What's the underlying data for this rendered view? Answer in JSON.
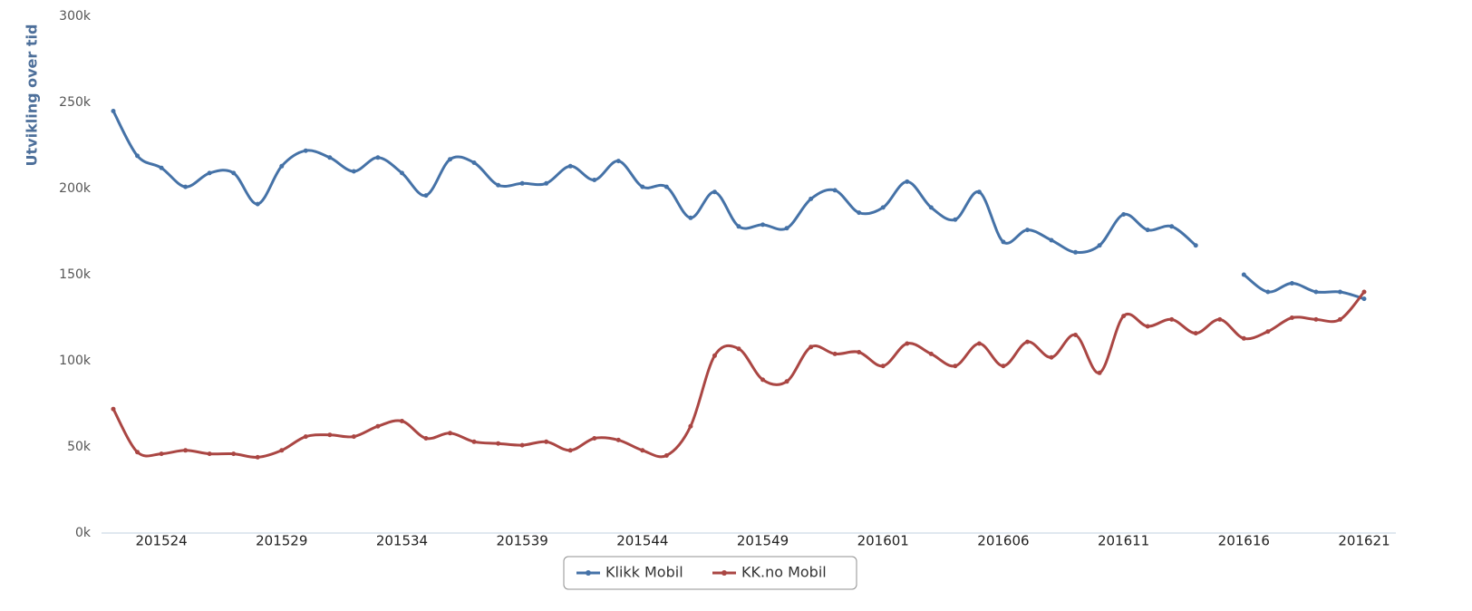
{
  "chart_data": {
    "type": "line",
    "ylabel": "Utvikling over tid",
    "categories": [
      null,
      null,
      "201524",
      null,
      null,
      null,
      null,
      "201529",
      null,
      null,
      null,
      null,
      "201534",
      null,
      null,
      null,
      null,
      "201539",
      null,
      null,
      null,
      null,
      "201544",
      null,
      null,
      null,
      null,
      "201549",
      null,
      null,
      null,
      null,
      "201601",
      null,
      null,
      null,
      null,
      "201606",
      null,
      null,
      null,
      null,
      "201611",
      null,
      null,
      null,
      null,
      "201616",
      null,
      null,
      null,
      null,
      "201621"
    ],
    "series": [
      {
        "name": "Klikk Mobil",
        "color": "#4572a7",
        "values": [
          245,
          219,
          212,
          201,
          209,
          209,
          191,
          213,
          222,
          218,
          210,
          218,
          209,
          196,
          217,
          215,
          202,
          203,
          203,
          213,
          205,
          216,
          201,
          201,
          183,
          198,
          178,
          179,
          177,
          194,
          199,
          186,
          189,
          204,
          189,
          182,
          198,
          169,
          176,
          170,
          163,
          167,
          185,
          176,
          178,
          167,
          null,
          150,
          140,
          145,
          140,
          140,
          136
        ]
      },
      {
        "name": "KK.no Mobil",
        "color": "#aa4643",
        "values": [
          72,
          47,
          46,
          48,
          46,
          46,
          44,
          48,
          56,
          57,
          56,
          62,
          65,
          55,
          58,
          53,
          52,
          51,
          53,
          48,
          55,
          54,
          48,
          45,
          62,
          103,
          107,
          89,
          88,
          108,
          104,
          105,
          97,
          110,
          104,
          97,
          110,
          97,
          111,
          102,
          115,
          93,
          126,
          120,
          124,
          116,
          124,
          113,
          117,
          125,
          124,
          124,
          140
        ]
      }
    ],
    "ylim": [
      0,
      300
    ],
    "yticks": [
      {
        "value": 0,
        "label": "0k"
      },
      {
        "value": 50,
        "label": "50k"
      },
      {
        "value": 100,
        "label": "100k"
      },
      {
        "value": 150,
        "label": "150k"
      },
      {
        "value": 200,
        "label": "200k"
      },
      {
        "value": 250,
        "label": "250k"
      },
      {
        "value": 300,
        "label": "300k"
      }
    ],
    "grid": false,
    "legend": "bottom"
  }
}
